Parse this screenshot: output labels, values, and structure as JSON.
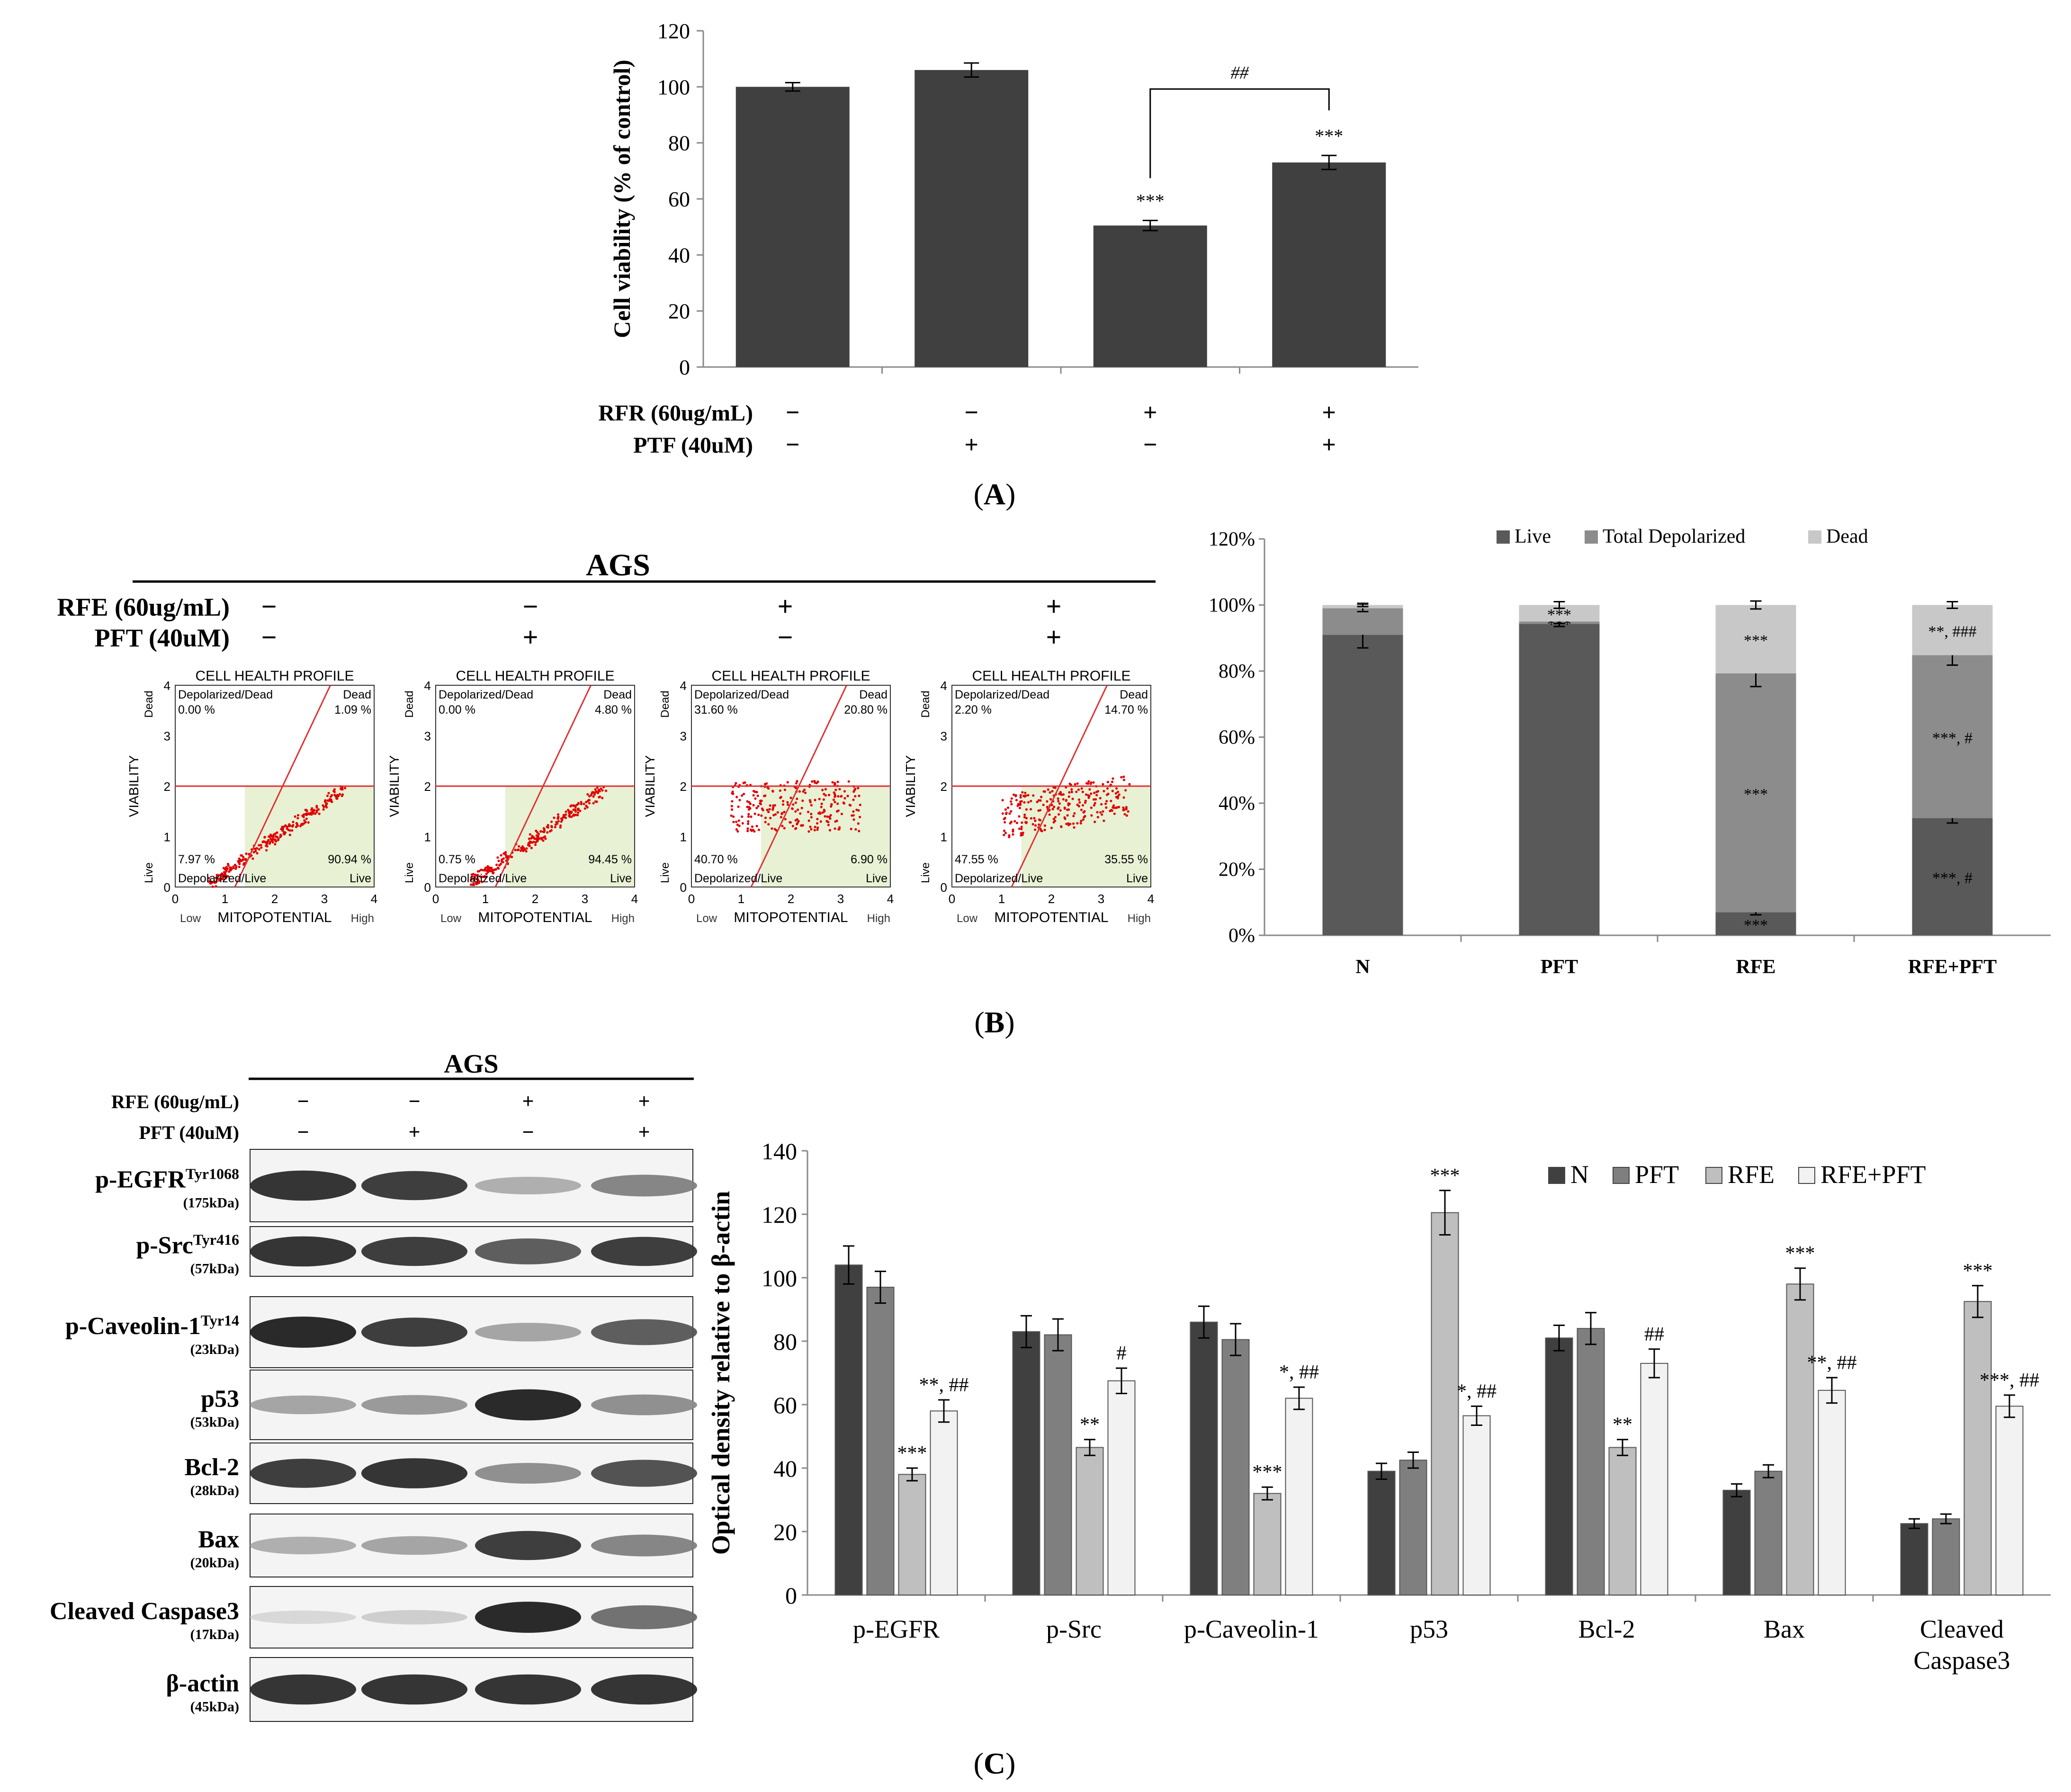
{
  "panel_labels": {
    "a": "A",
    "b": "B",
    "c": "C"
  },
  "panel_a": {
    "treatments": [
      {
        "label": "RFR (60ug/mL)",
        "signs": [
          "−",
          "−",
          "+",
          "+"
        ]
      },
      {
        "label": "PTF (40uM)",
        "signs": [
          "−",
          "+",
          "−",
          "+"
        ]
      }
    ]
  },
  "panel_b": {
    "cell_line": "AGS",
    "treatments": [
      {
        "label": "RFE (60ug/mL)",
        "signs": [
          "−",
          "−",
          "+",
          "+"
        ]
      },
      {
        "label": "PFT (40uM)",
        "signs": [
          "−",
          "+",
          "−",
          "+"
        ]
      }
    ],
    "flow": {
      "plot_title": "CELL HEALTH PROFILE",
      "y_axis_label": "VIABILITY",
      "x_axis_label": "MITOPOTENTIAL",
      "y_top": "Dead",
      "y_bottom": "Live",
      "x_left": "Low",
      "x_right": "High",
      "quad_ul": "Depolarized/Dead",
      "quad_ur": "Dead",
      "quad_ll": "Depolarized/Live",
      "quad_lr": "Live",
      "ticks": [
        "0",
        "1",
        "2",
        "3",
        "4"
      ],
      "plots": [
        {
          "ul": "0.00 %",
          "ur": "1.09 %",
          "ll": "7.97 %",
          "lr": "90.94 %",
          "pattern": "diag"
        },
        {
          "ul": "0.00 %",
          "ur": "4.80 %",
          "ll": "0.75 %",
          "lr": "94.45 %",
          "pattern": "diag"
        },
        {
          "ul": "31.60 %",
          "ur": "20.80 %",
          "ll": "40.70 %",
          "lr": "6.90 %",
          "pattern": "cloud"
        },
        {
          "ul": "2.20 %",
          "ur": "14.70 %",
          "ll": "47.55 %",
          "lr": "35.55 %",
          "pattern": "mixed"
        }
      ]
    }
  },
  "panel_c": {
    "cell_line": "AGS",
    "treatments": [
      {
        "label": "RFE (60ug/mL)",
        "signs": [
          "−",
          "−",
          "+",
          "+"
        ]
      },
      {
        "label": "PFT (40uM)",
        "signs": [
          "−",
          "+",
          "−",
          "+"
        ]
      }
    ],
    "blots": [
      {
        "name": "p-EGFR",
        "sup": "Tyr1068",
        "kda": "(175kDa)",
        "intensity": [
          0.9,
          0.85,
          0.3,
          0.5
        ]
      },
      {
        "name": "p-Src",
        "sup": "Tyr416",
        "kda": "(57kDa)",
        "intensity": [
          0.9,
          0.85,
          0.7,
          0.85
        ]
      },
      {
        "name": "p-Caveolin-1",
        "sup": "Tyr14",
        "kda": "(23kDa)",
        "intensity": [
          0.95,
          0.85,
          0.35,
          0.7
        ]
      },
      {
        "name": "p53",
        "sup": "",
        "kda": "(53kDa)",
        "intensity": [
          0.35,
          0.4,
          0.95,
          0.45
        ]
      },
      {
        "name": "Bcl-2",
        "sup": "",
        "kda": "(28kDa)",
        "intensity": [
          0.85,
          0.9,
          0.45,
          0.75
        ]
      },
      {
        "name": "Bax",
        "sup": "",
        "kda": "(20kDa)",
        "intensity": [
          0.3,
          0.35,
          0.85,
          0.5
        ]
      },
      {
        "name": "Cleaved Caspase3",
        "sup": "",
        "kda": "(17kDa)",
        "intensity": [
          0.1,
          0.15,
          0.95,
          0.6
        ]
      },
      {
        "name": "β-actin",
        "sup": "",
        "kda": "(45kDa)",
        "intensity": [
          0.9,
          0.9,
          0.9,
          0.9
        ]
      }
    ]
  },
  "chart_data": [
    {
      "id": "A",
      "type": "bar",
      "ylabel": "Cell viability (% of control)",
      "ylim": [
        0,
        120
      ],
      "yticks": [
        0,
        20,
        40,
        60,
        80,
        100,
        120
      ],
      "values": [
        100,
        106,
        50.5,
        73
      ],
      "errors": [
        1.5,
        2.5,
        1.8,
        2.5
      ],
      "color": "#404040",
      "annotations": [
        "",
        "",
        "***",
        "***"
      ],
      "bracket": {
        "from": 2,
        "to": 3,
        "label": "##"
      }
    },
    {
      "id": "B",
      "type": "stacked_bar",
      "categories": [
        "N",
        "PFT",
        "RFE",
        "RFE+PFT"
      ],
      "ylim": [
        0,
        120
      ],
      "yticks": [
        "0%",
        "20%",
        "40%",
        "60%",
        "80%",
        "100%",
        "120%"
      ],
      "legend_position": "top",
      "series": [
        {
          "name": "Live",
          "color": "#595959",
          "values": [
            91,
            94.3,
            7,
            35.5
          ],
          "errors": [
            4,
            0.8,
            0.8,
            1.5
          ],
          "annotations": [
            "",
            "",
            "***",
            "***, #"
          ]
        },
        {
          "name": "Total Depolarized",
          "color": "#8c8c8c",
          "values": [
            8,
            0.7,
            72.3,
            49.3
          ],
          "errors": [
            1,
            0.6,
            4,
            3
          ],
          "annotations": [
            "",
            "***",
            "***",
            "***, #"
          ]
        },
        {
          "name": "Dead",
          "color": "#c8c8c8",
          "values": [
            1,
            5,
            20.7,
            15.2
          ],
          "errors": [
            0.5,
            1,
            1.2,
            1
          ],
          "annotations": [
            "",
            "***",
            "***",
            "**, ###"
          ]
        }
      ]
    },
    {
      "id": "C",
      "type": "bar",
      "ylabel": "Optical density relative to β-actin",
      "ylim": [
        0,
        140
      ],
      "yticks": [
        0,
        20,
        40,
        60,
        80,
        100,
        120,
        140
      ],
      "categories": [
        "p-EGFR",
        "p-Src",
        "p-Caveolin-1",
        "p53",
        "Bcl-2",
        "Bax",
        "Cleaved Caspase3"
      ],
      "legend_position": "top-right",
      "series": [
        {
          "name": "N",
          "color": "#404040",
          "values": [
            104,
            83,
            86,
            39,
            81,
            33,
            22.5
          ],
          "errors": [
            6,
            5,
            5,
            2.5,
            4,
            2,
            1.5
          ],
          "annotations": [
            "",
            "",
            "",
            "",
            "",
            "",
            ""
          ]
        },
        {
          "name": "PFT",
          "color": "#7f7f7f",
          "values": [
            97,
            82,
            80.5,
            42.5,
            84,
            39,
            24
          ],
          "errors": [
            5,
            5,
            5,
            2.5,
            5,
            2,
            1.5
          ],
          "annotations": [
            "",
            "",
            "",
            "",
            "",
            "",
            ""
          ]
        },
        {
          "name": "RFE",
          "color": "#bfbfbf",
          "values": [
            38,
            46.5,
            32,
            120.5,
            46.5,
            98,
            92.5
          ],
          "errors": [
            2,
            2.5,
            2,
            7,
            2.5,
            5,
            5
          ],
          "annotations": [
            "***",
            "**",
            "***",
            "***",
            "**",
            "***",
            "***"
          ]
        },
        {
          "name": "RFE+PFT",
          "color": "#f2f2f2",
          "values": [
            58,
            67.5,
            62,
            56.5,
            73,
            64.5,
            59.5
          ],
          "errors": [
            3.5,
            4,
            3.5,
            3,
            4.5,
            4,
            3.5
          ],
          "annotations": [
            "**, ##",
            "#",
            "*, ##",
            "*, ##",
            "##",
            "**, ##",
            "***, ##"
          ]
        }
      ]
    }
  ]
}
